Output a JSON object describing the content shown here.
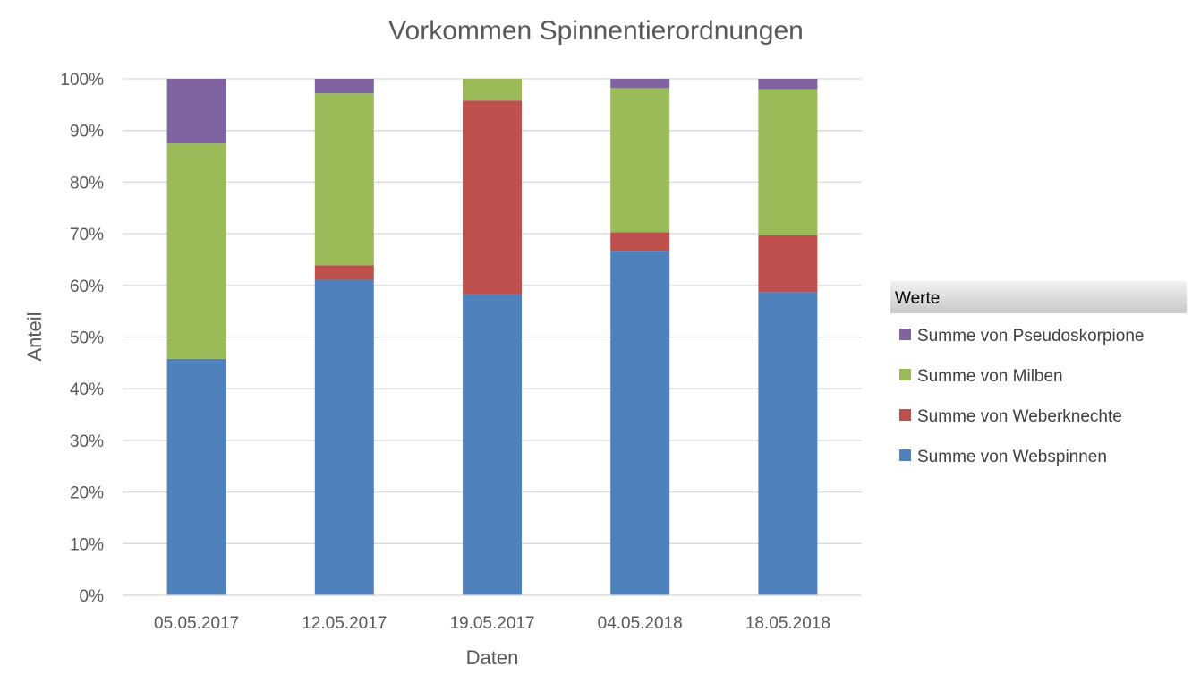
{
  "chart_data": {
    "type": "bar",
    "stacked": true,
    "percent_stacked": true,
    "title": "Vorkommen Spinnentierordnungen",
    "xlabel": "Daten",
    "ylabel": "Anteil",
    "ylim": [
      0,
      100
    ],
    "y_ticks": [
      "0%",
      "10%",
      "20%",
      "30%",
      "40%",
      "50%",
      "60%",
      "70%",
      "80%",
      "90%",
      "100%"
    ],
    "grid": true,
    "categories": [
      "05.05.2017",
      "12.05.2017",
      "19.05.2017",
      "04.05.2018",
      "18.05.2018"
    ],
    "series": [
      {
        "name": "Summe von Webspinnen",
        "color": "#4F81BD",
        "values": [
          45.8,
          61.1,
          58.3,
          66.7,
          58.7
        ]
      },
      {
        "name": "Summe von Weberknechte",
        "color": "#C0504D",
        "values": [
          0.0,
          2.8,
          37.5,
          3.6,
          11.0
        ]
      },
      {
        "name": "Summe von Milben",
        "color": "#9BBB59",
        "values": [
          41.7,
          33.3,
          4.2,
          27.9,
          28.3
        ]
      },
      {
        "name": "Summe von Pseudoskorpione",
        "color": "#8064A2",
        "values": [
          12.5,
          2.8,
          0.0,
          1.8,
          2.0
        ]
      }
    ],
    "legend": {
      "title": "Werte",
      "position": "right",
      "order": [
        "Summe von Pseudoskorpione",
        "Summe von Milben",
        "Summe von Weberknechte",
        "Summe von Webspinnen"
      ]
    }
  }
}
